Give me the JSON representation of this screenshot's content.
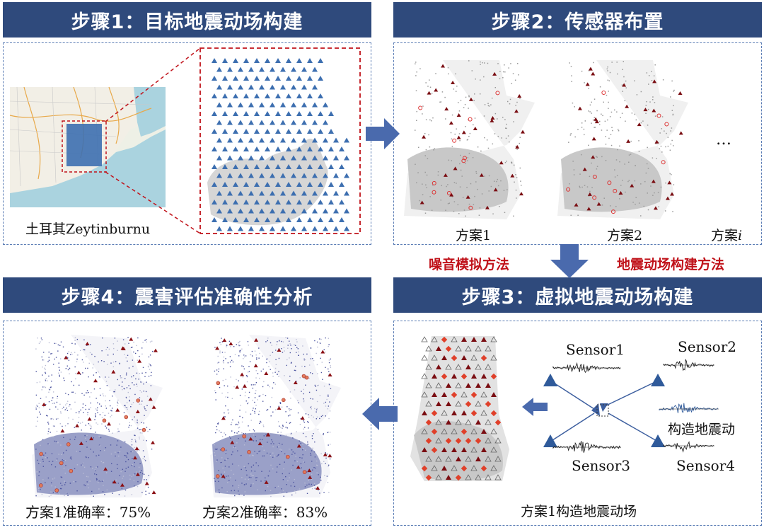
{
  "step1": {
    "title": "步骤1：目标地震动场构建",
    "map_caption": "土耳其Zeytinburnu"
  },
  "step2": {
    "title": "步骤2：传感器布置",
    "scheme1": "方案1",
    "scheme2": "方案2",
    "schemei_prefix": "方案",
    "schemei_var": "i",
    "ellipsis": "…"
  },
  "methods": {
    "left": "噪音模拟方法",
    "right": "地震动场构建方法"
  },
  "step3": {
    "title": "步骤3：虚拟地震动场构建",
    "sensor1": "Sensor1",
    "sensor2": "Sensor2",
    "sensor3": "Sensor3",
    "sensor4": "Sensor4",
    "constructed": "构造地震动",
    "caption": "方案1构造地震动场"
  },
  "step4": {
    "title": "步骤4：震害评估准确性分析",
    "acc1": "方案1准确率：75%",
    "acc2": "方案2准确率：83%"
  },
  "colors": {
    "header": "#2f4a7c",
    "dash": "#5b7db5",
    "red": "#c0121a",
    "arrow": "#4a6aad"
  }
}
